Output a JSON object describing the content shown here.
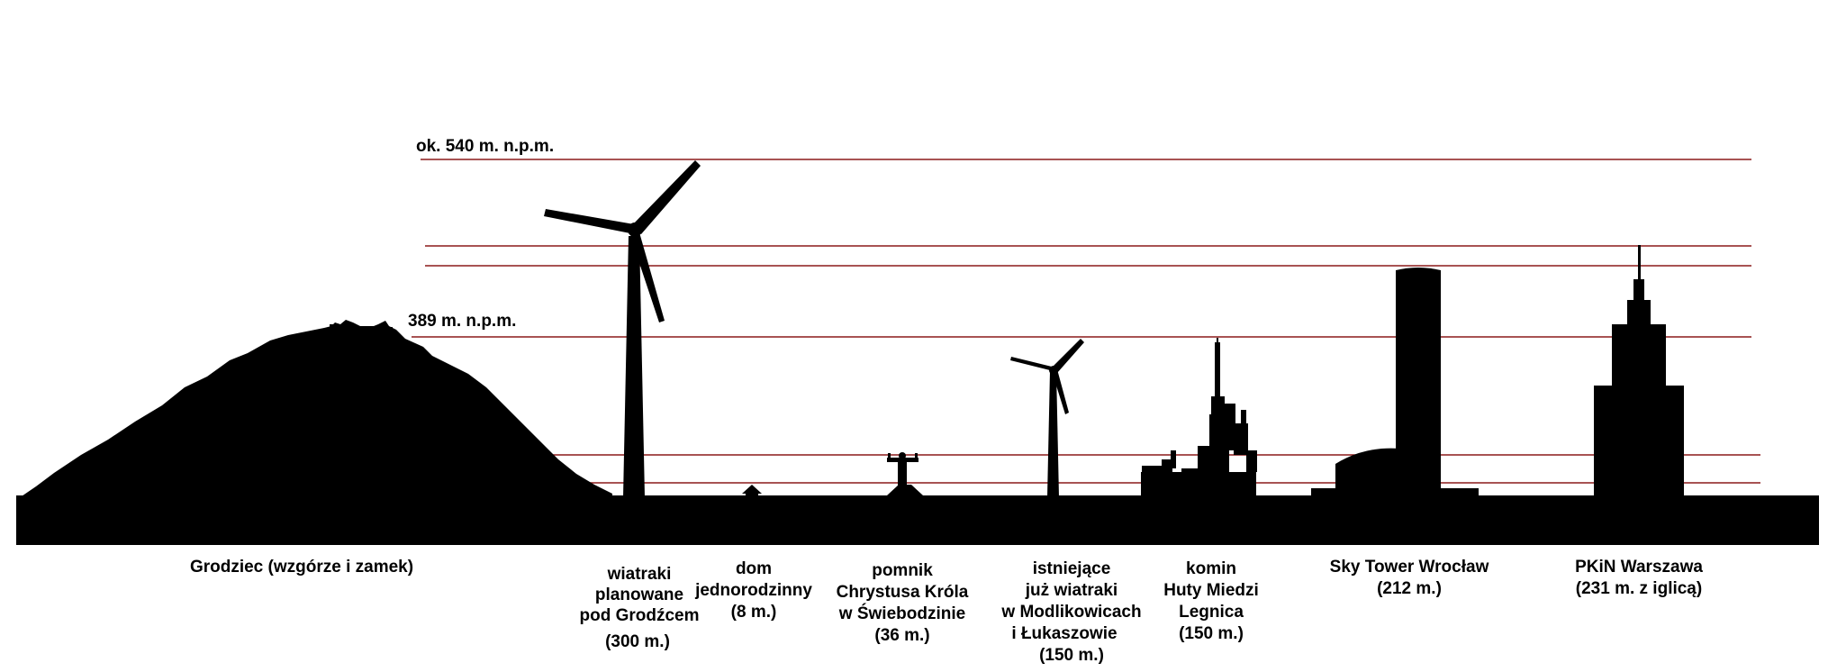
{
  "levels": {
    "top": "ok. 540 m. n.p.m.",
    "mid": "389 m. n.p.m."
  },
  "colors": {
    "silhouette": "#000000",
    "reference_line": "#8b1a1a",
    "background": "#ffffff"
  },
  "objects": [
    {
      "id": "grodziec",
      "icon": "hill-with-castle-icon",
      "lines": [
        "Grodziec (wzgórze i zamek)"
      ]
    },
    {
      "id": "planned-turbines",
      "icon": "wind-turbine-icon",
      "lines": [
        "wiatraki",
        "planowane",
        "pod Grodźcem",
        "(300 m.)"
      ]
    },
    {
      "id": "house",
      "icon": "house-icon",
      "lines": [
        "dom",
        "jednorodzinny",
        "(8 m.)"
      ]
    },
    {
      "id": "christ-statue",
      "icon": "statue-icon",
      "lines": [
        "pomnik",
        "Chrystusa Króla",
        "w Świebodzinie",
        "(36 m.)"
      ]
    },
    {
      "id": "existing-turbines",
      "icon": "wind-turbine-icon",
      "lines": [
        "istniejące",
        "już wiatraki",
        "w Modlikowicach",
        "i Łukaszowie",
        "(150 m.)"
      ]
    },
    {
      "id": "chimney",
      "icon": "industrial-chimney-icon",
      "lines": [
        "komin",
        "Huty Miedzi",
        "Legnica",
        "(150 m.)"
      ]
    },
    {
      "id": "sky-tower",
      "icon": "skyscraper-icon",
      "lines": [
        "Sky Tower Wrocław",
        "(212 m.)"
      ]
    },
    {
      "id": "pkin",
      "icon": "palace-tower-icon",
      "lines": [
        "PKiN Warszawa",
        "(231 m. z iglicą)"
      ]
    }
  ]
}
